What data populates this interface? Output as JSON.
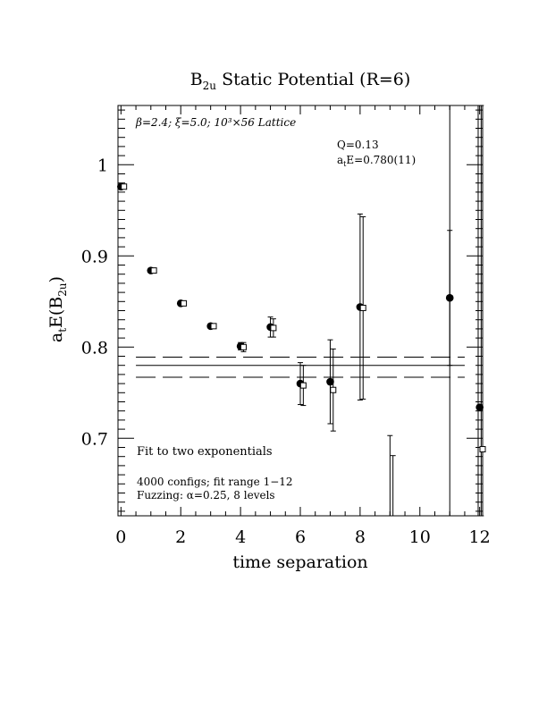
{
  "chart_data": {
    "type": "scatter",
    "title_main": "B",
    "title_sub": "2u",
    "title_rest": " Static Potential (R=6)",
    "xlabel": "time separation",
    "ylabel_main": "a",
    "ylabel_sub1": "t",
    "ylabel_mid": "E(B",
    "ylabel_sub2": "2u",
    "ylabel_end": ")",
    "xlim": [
      -0.1,
      12.1
    ],
    "ylim": [
      0.615,
      1.065
    ],
    "xticks": [
      "0",
      "2",
      "4",
      "6",
      "8",
      "10",
      "12"
    ],
    "yticks": [
      "0.7",
      "0.8",
      "0.9",
      "1"
    ],
    "annotations": {
      "lattice": "β=2.4; ξ=5.0; 10³×56 Lattice",
      "q": "Q=0.13",
      "energy_prefix": "a",
      "energy_sub": "t",
      "energy_value": "E=0.780(11)",
      "fit_note": "Fit to two exponentials",
      "configs": "4000 configs; fit range 1−12",
      "fuzzing": "Fuzzing: α=0.25, 8 levels"
    },
    "fit": {
      "value": 0.78,
      "lower": 0.767,
      "upper": 0.789,
      "x_range": [
        0.5,
        11.5
      ]
    },
    "series": [
      {
        "marker": "filled-circle",
        "points": [
          {
            "x": 0,
            "y": 0.976,
            "err": 0.001
          },
          {
            "x": 1,
            "y": 0.884,
            "err": 0.001
          },
          {
            "x": 2,
            "y": 0.848,
            "err": 0.002
          },
          {
            "x": 3,
            "y": 0.823,
            "err": 0.002
          },
          {
            "x": 4,
            "y": 0.801,
            "err": 0.004
          },
          {
            "x": 5,
            "y": 0.822,
            "err": 0.011
          },
          {
            "x": 6,
            "y": 0.76,
            "err": 0.023
          },
          {
            "x": 7,
            "y": 0.762,
            "err": 0.046
          },
          {
            "x": 8,
            "y": 0.844,
            "err": 0.102
          },
          {
            "x": 11,
            "y": 0.854,
            "err": 0.074
          },
          {
            "x": 12,
            "y": 0.734,
            "err": 0.0
          }
        ]
      },
      {
        "marker": "open-square",
        "points": [
          {
            "x": 0.1,
            "y": 0.976,
            "err": 0.001
          },
          {
            "x": 1.1,
            "y": 0.884,
            "err": 0.001
          },
          {
            "x": 2.1,
            "y": 0.848,
            "err": 0.002
          },
          {
            "x": 3.1,
            "y": 0.823,
            "err": 0.002
          },
          {
            "x": 4.1,
            "y": 0.8,
            "err": 0.005
          },
          {
            "x": 5.1,
            "y": 0.821,
            "err": 0.01
          },
          {
            "x": 6.1,
            "y": 0.758,
            "err": 0.022
          },
          {
            "x": 7.1,
            "y": 0.753,
            "err": 0.045
          },
          {
            "x": 8.1,
            "y": 0.843,
            "err": 0.1
          },
          {
            "x": 12.1,
            "y": 0.688,
            "err": 0.0
          }
        ]
      }
    ],
    "bars_only": [
      {
        "x": 9.0,
        "ylow": 0.615,
        "yhigh": 0.703
      },
      {
        "x": 9.1,
        "ylow": 0.615,
        "yhigh": 0.681
      },
      {
        "x": 11.0,
        "ylow": 0.615,
        "yhigh": 1.065
      },
      {
        "x": 11.95,
        "ylow": 0.615,
        "yhigh": 1.065
      },
      {
        "x": 12.05,
        "ylow": 0.615,
        "yhigh": 1.065
      }
    ]
  }
}
